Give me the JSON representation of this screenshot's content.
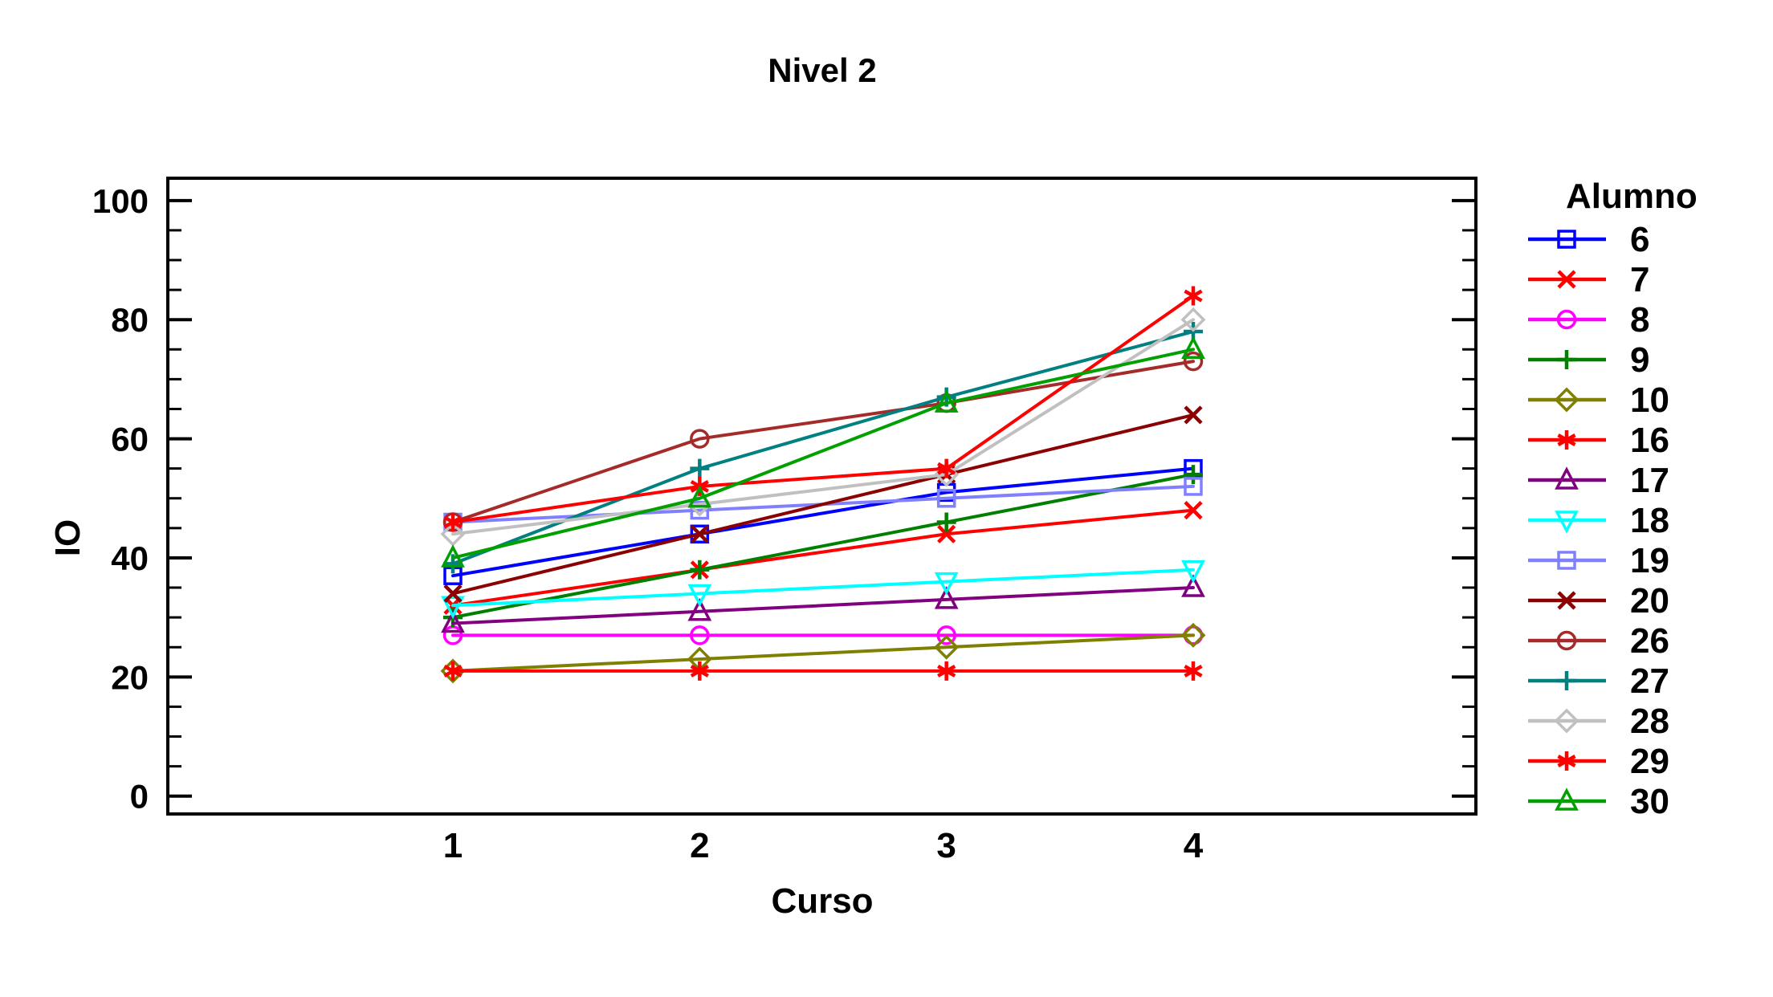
{
  "chart_data": {
    "type": "line",
    "title": "Nivel 2",
    "xlabel": "Curso",
    "ylabel": "IO",
    "legend_title": "Alumno",
    "legend_position": "right",
    "x": [
      1,
      2,
      3,
      4
    ],
    "ylim": [
      0,
      100
    ],
    "yticks_major": [
      0,
      20,
      40,
      60,
      80,
      100
    ],
    "ytick_minor_step": 5,
    "grid": "off",
    "series": [
      {
        "name": "6",
        "color": "#0000FF",
        "marker": "square",
        "values": [
          37,
          44,
          51,
          55
        ]
      },
      {
        "name": "7",
        "color": "#FF0000",
        "marker": "x",
        "values": [
          32,
          38,
          44,
          48
        ]
      },
      {
        "name": "8",
        "color": "#FF00FF",
        "marker": "circle",
        "values": [
          27,
          27,
          27,
          27
        ]
      },
      {
        "name": "9",
        "color": "#008000",
        "marker": "plus",
        "values": [
          30,
          38,
          46,
          54
        ]
      },
      {
        "name": "10",
        "color": "#808000",
        "marker": "diamond",
        "values": [
          21,
          23,
          25,
          27
        ]
      },
      {
        "name": "16",
        "color": "#FF0000",
        "marker": "asterisk",
        "values": [
          21,
          21,
          21,
          21
        ]
      },
      {
        "name": "17",
        "color": "#800080",
        "marker": "triangle-up",
        "values": [
          29,
          31,
          33,
          35
        ]
      },
      {
        "name": "18",
        "color": "#00FFFF",
        "marker": "triangle-down",
        "values": [
          32,
          34,
          36,
          38
        ]
      },
      {
        "name": "19",
        "color": "#8080FF",
        "marker": "square",
        "values": [
          46,
          48,
          50,
          52
        ]
      },
      {
        "name": "20",
        "color": "#8B0000",
        "marker": "x",
        "values": [
          34,
          44,
          54,
          64
        ]
      },
      {
        "name": "26",
        "color": "#A52A2A",
        "marker": "circle",
        "values": [
          46,
          60,
          66,
          73
        ]
      },
      {
        "name": "27",
        "color": "#008080",
        "marker": "plus",
        "values": [
          39,
          55,
          67,
          78
        ]
      },
      {
        "name": "28",
        "color": "#C0C0C0",
        "marker": "diamond",
        "values": [
          44,
          49,
          54,
          80
        ]
      },
      {
        "name": "29",
        "color": "#FF0000",
        "marker": "asterisk",
        "values": [
          46,
          52,
          55,
          84
        ]
      },
      {
        "name": "30",
        "color": "#00A000",
        "marker": "triangle-up",
        "values": [
          40,
          50,
          66,
          75
        ]
      }
    ]
  }
}
